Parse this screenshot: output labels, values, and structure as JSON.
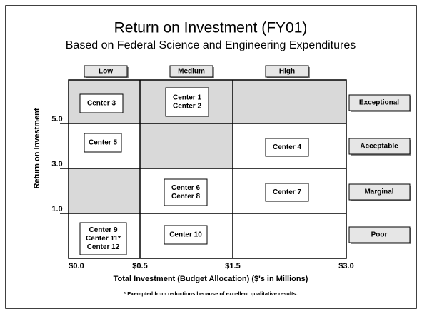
{
  "header": {
    "title": "Return on Investment (FY01)",
    "subtitle": "Based on Federal Science and Engineering Expenditures"
  },
  "columns": [
    "Low",
    "Medium",
    "High"
  ],
  "rows": [
    "Exceptional",
    "Acceptable",
    "Marginal",
    "Poor"
  ],
  "y_axis": {
    "title": "Return on Investment",
    "ticks": [
      "5.0",
      "3.0",
      "1.0"
    ]
  },
  "x_axis": {
    "title": "Total Investment (Budget Allocation) ($'s in Millions)",
    "ticks": [
      "$0.0",
      "$0.5",
      "$1.5",
      "$3.0"
    ]
  },
  "centers": [
    {
      "lines": [
        "Center 3"
      ]
    },
    {
      "lines": [
        "Center 1",
        "Center 2"
      ]
    },
    {
      "lines": [
        "Center 5"
      ]
    },
    {
      "lines": [
        "Center 4"
      ]
    },
    {
      "lines": [
        "Center 6",
        "Center 8"
      ]
    },
    {
      "lines": [
        "Center 7"
      ]
    },
    {
      "lines": [
        "Center 9",
        "Center 11*",
        "Center 12"
      ]
    },
    {
      "lines": [
        "Center 10"
      ]
    }
  ],
  "footnote": "* Exempted from reductions because of excellent qualitative results."
}
